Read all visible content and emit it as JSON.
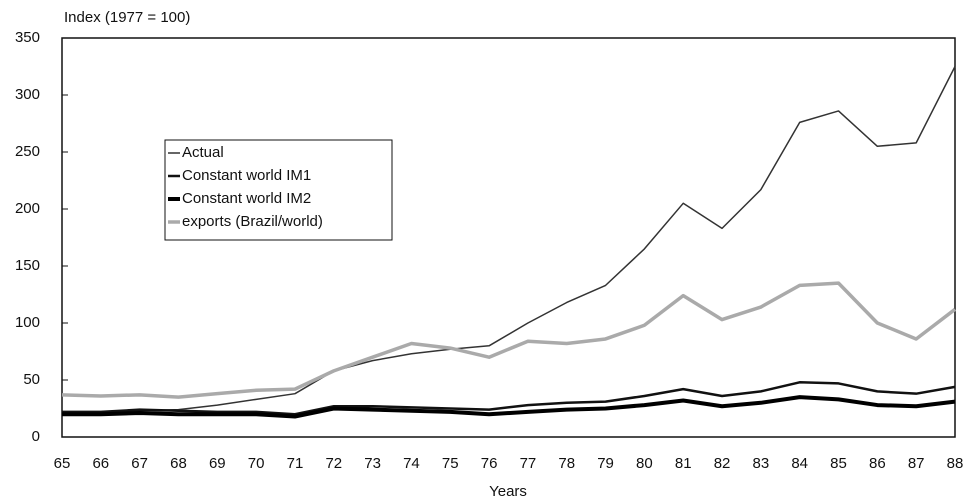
{
  "chart_data": {
    "type": "line",
    "title": "Index (1977 = 100)",
    "xlabel": "Years",
    "categories": [
      "65",
      "66",
      "67",
      "68",
      "69",
      "70",
      "71",
      "72",
      "73",
      "74",
      "75",
      "76",
      "77",
      "78",
      "79",
      "80",
      "81",
      "82",
      "83",
      "84",
      "85",
      "86",
      "87",
      "88"
    ],
    "series": [
      {
        "name": "Actual",
        "color": "#333333",
        "width": 1.5,
        "values": [
          22,
          22,
          23,
          24,
          28,
          33,
          38,
          58,
          67,
          73,
          77,
          80,
          100,
          118,
          133,
          165,
          205,
          183,
          217,
          276,
          286,
          255,
          258,
          325
        ]
      },
      {
        "name": "Constant world IM1",
        "color": "#111111",
        "width": 2.5,
        "values": [
          22,
          22,
          24,
          23,
          22,
          22,
          20,
          27,
          27,
          26,
          25,
          24,
          28,
          30,
          31,
          36,
          42,
          36,
          40,
          48,
          47,
          40,
          38,
          44
        ]
      },
      {
        "name": "Constant world IM2",
        "color": "#000000",
        "width": 4,
        "values": [
          20,
          20,
          21,
          20,
          20,
          20,
          18,
          25,
          24,
          23,
          22,
          20,
          22,
          24,
          25,
          28,
          32,
          27,
          30,
          35,
          33,
          28,
          27,
          31
        ]
      },
      {
        "name": "exports (Brazil/world)",
        "color": "#aaaaaa",
        "width": 3.5,
        "values": [
          37,
          36,
          37,
          35,
          38,
          41,
          42,
          58,
          70,
          82,
          78,
          70,
          84,
          82,
          86,
          98,
          124,
          103,
          114,
          133,
          135,
          100,
          86,
          112
        ]
      }
    ],
    "ylim": [
      0,
      350
    ],
    "yticks": [
      0,
      50,
      100,
      150,
      200,
      250,
      300,
      350
    ]
  }
}
